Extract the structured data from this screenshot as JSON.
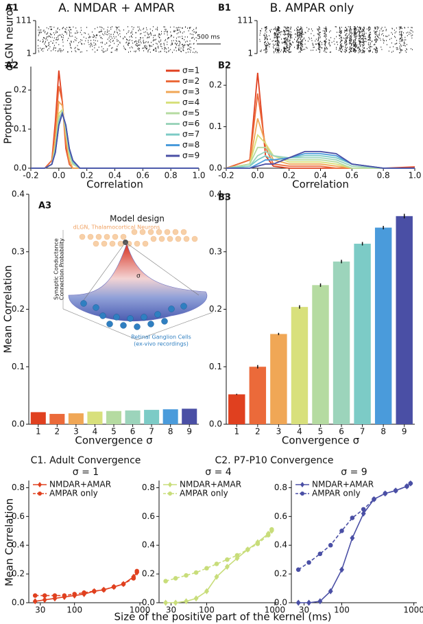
{
  "headers": [
    "A. NMDAR + AMPAR",
    "B. AMPAR only"
  ],
  "chart_data": [
    {
      "type": "raster",
      "panel": "A1",
      "ylabel": "dLGN neuron",
      "ylim": [
        1,
        111
      ],
      "yticks": [
        1,
        111
      ],
      "scale_bar": "500 ms"
    },
    {
      "type": "raster",
      "panel": "B1",
      "ylim": [
        1,
        111
      ],
      "yticks": [
        1,
        111
      ]
    },
    {
      "type": "line",
      "panel": "A2",
      "ylabel": "Proportion",
      "xlabel": "Correlation",
      "x": [
        -0.2,
        -0.1,
        -0.05,
        -0.025,
        0,
        0.025,
        0.05,
        0.075,
        0.1,
        0.15,
        0.2,
        0.3,
        0.4,
        0.6,
        0.8,
        1.0
      ],
      "xlim": [
        -0.2,
        1.0
      ],
      "xticks": [
        -0.2,
        {
          "value": 0,
          "label": "0.0"
        },
        0.2,
        0.4,
        0.6,
        0.8,
        {
          "value": 1,
          "label": "1.0"
        }
      ],
      "ylim": [
        0,
        0.26
      ],
      "yticks": [
        {
          "value": 0,
          "label": "0.0"
        },
        0.1,
        0.2
      ],
      "legend": "upper right",
      "series": [
        {
          "name": "σ=1",
          "color": "#e0401f",
          "values": [
            0,
            0,
            0.02,
            0.12,
            0.25,
            0.17,
            0.05,
            0.01,
            0,
            0,
            0,
            0,
            0,
            0,
            0,
            0
          ]
        },
        {
          "name": "σ=2",
          "color": "#eb6a3a",
          "values": [
            0,
            0,
            0.02,
            0.1,
            0.21,
            0.17,
            0.06,
            0.01,
            0,
            0,
            0,
            0,
            0,
            0,
            0,
            0
          ]
        },
        {
          "name": "σ=3",
          "color": "#f0a756",
          "values": [
            0,
            0,
            0.01,
            0.07,
            0.17,
            0.16,
            0.08,
            0.02,
            0,
            0,
            0,
            0,
            0,
            0,
            0,
            0
          ]
        },
        {
          "name": "σ=4",
          "color": "#d8e07c",
          "values": [
            0,
            0,
            0.01,
            0.06,
            0.14,
            0.15,
            0.09,
            0.03,
            0.01,
            0,
            0,
            0,
            0,
            0,
            0,
            0
          ]
        },
        {
          "name": "σ=5",
          "color": "#b5dba1",
          "values": [
            0,
            0,
            0.01,
            0.05,
            0.13,
            0.145,
            0.1,
            0.04,
            0.01,
            0,
            0,
            0,
            0,
            0,
            0,
            0
          ]
        },
        {
          "name": "σ=6",
          "color": "#9cd4bb",
          "values": [
            0,
            0,
            0.01,
            0.05,
            0.12,
            0.145,
            0.1,
            0.04,
            0.015,
            0,
            0,
            0,
            0,
            0,
            0,
            0
          ]
        },
        {
          "name": "σ=7",
          "color": "#7ccbc6",
          "values": [
            0,
            0,
            0.01,
            0.045,
            0.12,
            0.14,
            0.11,
            0.045,
            0.015,
            0,
            0,
            0,
            0,
            0,
            0,
            0
          ]
        },
        {
          "name": "σ=8",
          "color": "#4a9bdb",
          "values": [
            0,
            0,
            0.01,
            0.04,
            0.11,
            0.14,
            0.11,
            0.05,
            0.02,
            0,
            0,
            0,
            0,
            0,
            0,
            0
          ]
        },
        {
          "name": "σ=9",
          "color": "#4a4fa5",
          "values": [
            0,
            0,
            0.01,
            0.04,
            0.11,
            0.14,
            0.11,
            0.05,
            0.02,
            0,
            0,
            0,
            0,
            0,
            0,
            0
          ]
        }
      ]
    },
    {
      "type": "line",
      "panel": "B2",
      "xlabel": "Correlation",
      "x": [
        -0.2,
        -0.05,
        0,
        0.05,
        0.1,
        0.2,
        0.3,
        0.4,
        0.5,
        0.6,
        0.8,
        1.0
      ],
      "xlim": [
        -0.2,
        1.0
      ],
      "xticks": [
        -0.2,
        {
          "value": 0,
          "label": "0.0"
        },
        0.2,
        0.4,
        0.6,
        0.8,
        {
          "value": 1,
          "label": "1.0"
        }
      ],
      "ylim": [
        0,
        0.245
      ],
      "yticks": [
        {
          "value": 0,
          "label": "0.0"
        },
        0.1,
        0.2
      ],
      "series": [
        {
          "color": "#e0401f",
          "values": [
            0,
            0.02,
            0.23,
            0.03,
            0.005,
            0,
            0,
            0,
            0,
            0,
            0,
            0.003
          ]
        },
        {
          "color": "#eb6a3a",
          "values": [
            0,
            0.02,
            0.18,
            0.05,
            0.01,
            0.005,
            0.005,
            0.005,
            0,
            0,
            0,
            0
          ]
        },
        {
          "color": "#f0a756",
          "values": [
            0,
            0.01,
            0.12,
            0.06,
            0.02,
            0.01,
            0.01,
            0.01,
            0.005,
            0,
            0,
            0
          ]
        },
        {
          "color": "#d8e07c",
          "values": [
            0,
            0.01,
            0.08,
            0.06,
            0.03,
            0.015,
            0.015,
            0.015,
            0.01,
            0,
            0,
            0
          ]
        },
        {
          "color": "#b5dba1",
          "values": [
            0,
            0.01,
            0.05,
            0.05,
            0.03,
            0.02,
            0.02,
            0.02,
            0.015,
            0,
            0,
            0
          ]
        },
        {
          "color": "#9cd4bb",
          "values": [
            0,
            0.005,
            0.03,
            0.04,
            0.03,
            0.025,
            0.025,
            0.025,
            0.02,
            0.005,
            0,
            0
          ]
        },
        {
          "color": "#7ccbc6",
          "values": [
            0,
            0.005,
            0.02,
            0.03,
            0.02,
            0.025,
            0.03,
            0.03,
            0.025,
            0.01,
            0,
            0
          ]
        },
        {
          "color": "#4a9bdb",
          "values": [
            0,
            0,
            0.01,
            0.02,
            0.02,
            0.025,
            0.035,
            0.035,
            0.03,
            0.01,
            0,
            0
          ]
        },
        {
          "color": "#4a4fa5",
          "values": [
            0,
            0,
            0.005,
            0.01,
            0.01,
            0.025,
            0.04,
            0.04,
            0.035,
            0.01,
            0,
            0
          ]
        }
      ]
    },
    {
      "type": "bar",
      "panel": "A3",
      "ylabel": "Mean Correlation",
      "xlabel": "Convergence σ",
      "categories": [
        "1",
        "2",
        "3",
        "4",
        "5",
        "6",
        "7",
        "8",
        "9"
      ],
      "colors": [
        "#e0401f",
        "#eb6a3a",
        "#f0a756",
        "#d8e07c",
        "#b5dba1",
        "#9cd4bb",
        "#7ccbc6",
        "#4a9bdb",
        "#4a4fa5"
      ],
      "values": [
        0.021,
        0.018,
        0.019,
        0.022,
        0.023,
        0.024,
        0.025,
        0.026,
        0.027
      ],
      "ylim": [
        0,
        0.4
      ],
      "yticks": [
        {
          "value": 0,
          "label": "0.0"
        },
        0.1,
        0.2,
        0.3,
        0.4
      ]
    },
    {
      "type": "bar",
      "panel": "B3",
      "xlabel": "Convergence σ",
      "categories": [
        "1",
        "2",
        "3",
        "4",
        "5",
        "6",
        "7",
        "8",
        "9"
      ],
      "colors": [
        "#e0401f",
        "#eb6a3a",
        "#f0a756",
        "#d8e07c",
        "#b5dba1",
        "#9cd4bb",
        "#7ccbc6",
        "#4a9bdb",
        "#4a4fa5"
      ],
      "values": [
        0.052,
        0.1,
        0.157,
        0.204,
        0.242,
        0.283,
        0.314,
        0.342,
        0.362
      ],
      "errors": [
        0.001,
        0.003,
        0.002,
        0.003,
        0.003,
        0.003,
        0.003,
        0.003,
        0.004
      ],
      "ylim": [
        0,
        0.4
      ],
      "yticks": [
        {
          "value": 0,
          "label": "0.0"
        },
        0.1,
        0.2,
        0.3,
        0.4
      ]
    },
    {
      "type": "line",
      "title": "σ = 1",
      "xscale": "log",
      "xlim": [
        20,
        1100
      ],
      "xticks": [
        30,
        100,
        1000
      ],
      "ylim": [
        0,
        0.85
      ],
      "yticks": [
        {
          "value": 0,
          "label": "0.0"
        },
        0.2,
        0.4,
        0.6,
        0.8
      ],
      "legend": "upper left",
      "x": [
        25,
        35,
        50,
        70,
        100,
        140,
        200,
        280,
        400,
        560,
        800,
        900
      ],
      "series": [
        {
          "name": "NMDAR+AMAR",
          "color": "#e0401f",
          "marker": "diamond",
          "linestyle": "solid",
          "values": [
            0.01,
            0.02,
            0.03,
            0.04,
            0.05,
            0.06,
            0.08,
            0.09,
            0.11,
            0.13,
            0.18,
            0.21
          ]
        },
        {
          "name": "AMPAR only",
          "color": "#e0401f",
          "marker": "circle",
          "linestyle": "dashed",
          "values": [
            0.05,
            0.05,
            0.05,
            0.05,
            0.06,
            0.07,
            0.08,
            0.09,
            0.11,
            0.13,
            0.17,
            0.22
          ]
        }
      ]
    },
    {
      "type": "line",
      "title": "σ = 4",
      "xscale": "log",
      "xlim": [
        20,
        1100
      ],
      "xticks": [
        30,
        100,
        1000
      ],
      "ylim": [
        0,
        0.85
      ],
      "yticks": [
        {
          "value": 0,
          "label": "0.0"
        },
        0.2,
        0.4,
        0.6,
        0.8
      ],
      "legend": "upper left",
      "x": [
        25,
        35,
        50,
        70,
        100,
        140,
        200,
        280,
        400,
        560,
        800,
        900
      ],
      "series": [
        {
          "name": "NMDAR+AMAR",
          "color": "#c8dd7a",
          "marker": "diamond",
          "linestyle": "solid",
          "values": [
            0,
            0,
            0.01,
            0.03,
            0.08,
            0.18,
            0.25,
            0.31,
            0.37,
            0.42,
            0.48,
            0.5
          ]
        },
        {
          "name": "AMPAR only",
          "color": "#c8dd7a",
          "marker": "circle",
          "linestyle": "dashed",
          "values": [
            0.15,
            0.17,
            0.19,
            0.21,
            0.24,
            0.27,
            0.3,
            0.33,
            0.37,
            0.41,
            0.47,
            0.51
          ]
        }
      ]
    },
    {
      "type": "line",
      "title": "σ = 9",
      "xscale": "log",
      "xlim": [
        20,
        1100
      ],
      "xticks": [
        30,
        100,
        1000
      ],
      "ylim": [
        0,
        0.85
      ],
      "yticks": [
        {
          "value": 0,
          "label": "0.0"
        },
        0.2,
        0.4,
        0.6,
        0.8
      ],
      "legend": "upper left",
      "x": [
        25,
        35,
        50,
        70,
        100,
        140,
        200,
        280,
        400,
        560,
        800,
        900
      ],
      "series": [
        {
          "name": "NMDAR+AMAR",
          "color": "#4a4fa5",
          "marker": "diamond",
          "linestyle": "solid",
          "values": [
            0,
            0,
            0.01,
            0.08,
            0.23,
            0.45,
            0.62,
            0.72,
            0.76,
            0.78,
            0.81,
            0.83
          ]
        },
        {
          "name": "AMPAR only",
          "color": "#4a4fa5",
          "marker": "circle",
          "linestyle": "dashed",
          "values": [
            0.23,
            0.28,
            0.34,
            0.4,
            0.5,
            0.59,
            0.65,
            0.72,
            0.76,
            0.78,
            0.81,
            0.83
          ]
        }
      ]
    }
  ],
  "inset": {
    "title": "Model design",
    "top_label": "dLGN, Thalamocortical Neurons",
    "axis_label": [
      "Synaptic Conductance",
      "Connection Probability"
    ],
    "sigma": "σ",
    "bottom_label": [
      "Retinal Ganglion Cells",
      "(ex-vivo recordings)"
    ]
  },
  "section_titles": [
    "C1. Adult Convergence",
    "C2. P7-P10 Convergence"
  ],
  "c_ylabel": "Mean Correlation",
  "c_xlabel": "Size of the positive part of the kernel (ms)"
}
